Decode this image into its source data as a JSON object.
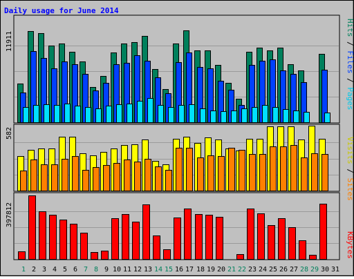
{
  "chart_data": {
    "type": "bar",
    "title": "Daily usage for June 2014",
    "days": [
      "1",
      "2",
      "3",
      "4",
      "5",
      "6",
      "7",
      "8",
      "9",
      "10",
      "11",
      "12",
      "13",
      "14",
      "15",
      "16",
      "17",
      "18",
      "19",
      "20",
      "21",
      "22",
      "23",
      "24",
      "25",
      "26",
      "27",
      "28",
      "29",
      "30",
      "31"
    ],
    "weekend_days": [
      "1",
      "7",
      "8",
      "14",
      "15",
      "21",
      "22",
      "28",
      "29"
    ],
    "panels": [
      {
        "id": "hits",
        "max_label": "11911",
        "ylim": [
          0,
          11911
        ],
        "legend": {
          "hits": "Hits",
          "files": "Files",
          "pages": "Pages",
          "sep": " / "
        },
        "series": [
          {
            "name": "Hits",
            "color": "#00805c",
            "values": [
              4500,
              10600,
              10400,
              8900,
              9200,
              8200,
              7100,
              4100,
              5400,
              8100,
              9200,
              9300,
              10100,
              6200,
              3900,
              9200,
              10700,
              8400,
              8400,
              6700,
              4600,
              2700,
              8200,
              8700,
              8400,
              8700,
              6800,
              6000,
              null,
              8000,
              null
            ]
          },
          {
            "name": "Files",
            "color": "#0040ff",
            "values": [
              3500,
              8300,
              7500,
              6300,
              7100,
              6800,
              5600,
              3700,
              4600,
              6800,
              6900,
              7800,
              7200,
              5200,
              3400,
              7000,
              8100,
              6400,
              6300,
              4800,
              3800,
              2000,
              6700,
              7200,
              7300,
              6000,
              5600,
              4700,
              null,
              6100,
              null
            ]
          },
          {
            "name": "Pages",
            "color": "#00e0ff",
            "values": [
              1800,
              2000,
              2100,
              2000,
              2200,
              1900,
              1800,
              1600,
              1900,
              2100,
              2200,
              2500,
              2800,
              2000,
              1800,
              2000,
              2100,
              1600,
              1400,
              1300,
              1400,
              1600,
              1800,
              2000,
              1800,
              1500,
              1400,
              1200,
              null,
              1100,
              null
            ]
          }
        ]
      },
      {
        "id": "visits",
        "max_label": "582",
        "ylim": [
          0,
          582
        ],
        "legend": {
          "visits": "Visits",
          "sites": "Sites",
          "sep": " / "
        },
        "series": [
          {
            "name": "Visits",
            "color": "#ffff00",
            "values": [
              310,
              370,
              380,
              380,
              490,
              490,
              340,
              320,
              350,
              380,
              410,
              420,
              460,
              270,
              240,
              470,
              490,
              430,
              480,
              460,
              380,
              360,
              470,
              470,
              580,
              580,
              580,
              460,
              590,
              470,
              null
            ]
          },
          {
            "name": "Sites",
            "color": "#ff8000",
            "values": [
              180,
              280,
              240,
              240,
              290,
              310,
              190,
              210,
              230,
              250,
              280,
              260,
              290,
              220,
              190,
              390,
              390,
              300,
              320,
              310,
              390,
              370,
              330,
              330,
              400,
              400,
              410,
              300,
              340,
              330,
              null
            ]
          }
        ]
      },
      {
        "id": "kbytes",
        "max_label": "397812",
        "ylim": [
          0,
          397812
        ],
        "legend": {
          "kbytes": "KBytes"
        },
        "series": [
          {
            "name": "KBytes",
            "color": "#ff0000",
            "values": [
              47000,
              397812,
              297000,
              276000,
              247000,
              219000,
              165000,
              45000,
              50000,
              257000,
              279000,
              235000,
              340000,
              148000,
              59000,
              260000,
              315000,
              279000,
              276000,
              262000,
              null,
              29000,
              315000,
              286000,
              211000,
              256000,
              201000,
              117000,
              24000,
              345000,
              null
            ]
          }
        ]
      }
    ]
  }
}
